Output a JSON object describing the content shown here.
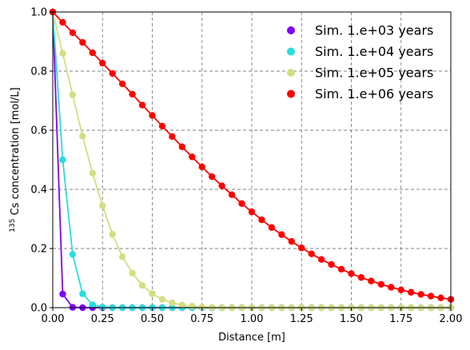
{
  "chart_data": {
    "type": "line",
    "xlabel": "Distance [m]",
    "ylabel_sup": "135",
    "ylabel_rest": " Cs concentration [mol/L]",
    "xlim": [
      0,
      2.0
    ],
    "ylim": [
      0,
      1.0
    ],
    "xticks": [
      "0.00",
      "0.25",
      "0.50",
      "0.75",
      "1.00",
      "1.25",
      "1.50",
      "1.75",
      "2.00"
    ],
    "yticks": [
      "0.0",
      "0.2",
      "0.4",
      "0.6",
      "0.8",
      "1.0"
    ],
    "grid": true,
    "legend_position": "top-right",
    "x": [
      0.0,
      0.05,
      0.1,
      0.15,
      0.2,
      0.25,
      0.3,
      0.35,
      0.4,
      0.45,
      0.5,
      0.55,
      0.6,
      0.65,
      0.7,
      0.75,
      0.8,
      0.85,
      0.9,
      0.95,
      1.0,
      1.05,
      1.1,
      1.15,
      1.2,
      1.25,
      1.3,
      1.35,
      1.4,
      1.45,
      1.5,
      1.55,
      1.6,
      1.65,
      1.7,
      1.75,
      1.8,
      1.85,
      1.9,
      1.95,
      2.0
    ],
    "series": [
      {
        "name": "Sim. 1.e+03 years",
        "color": "#8000ff",
        "values": [
          1.0,
          0.046,
          0.001,
          0,
          0,
          0,
          0,
          0,
          0,
          0,
          0,
          0,
          0,
          0,
          0,
          0,
          0,
          0,
          0,
          0,
          0,
          0,
          0,
          0,
          0,
          0,
          0,
          0,
          0,
          0,
          0,
          0,
          0,
          0,
          0,
          0,
          0,
          0,
          0,
          0,
          0
        ]
      },
      {
        "name": "Sim. 1.e+04 years",
        "color": "#2adddd",
        "values": [
          1.0,
          0.5,
          0.18,
          0.047,
          0.01,
          0.002,
          0,
          0,
          0,
          0,
          0,
          0,
          0,
          0,
          0,
          0,
          0,
          0,
          0,
          0,
          0,
          0,
          0,
          0,
          0,
          0,
          0,
          0,
          0,
          0,
          0,
          0,
          0,
          0,
          0,
          0,
          0,
          0,
          0,
          0,
          0
        ]
      },
      {
        "name": "Sim. 1.e+05 years",
        "color": "#d4dd80",
        "values": [
          1.0,
          0.86,
          0.72,
          0.58,
          0.455,
          0.345,
          0.248,
          0.172,
          0.117,
          0.075,
          0.047,
          0.028,
          0.016,
          0.009,
          0.005,
          0.002,
          0.001,
          0,
          0,
          0,
          0,
          0,
          0,
          0,
          0,
          0,
          0,
          0,
          0,
          0,
          0,
          0,
          0,
          0,
          0,
          0,
          0,
          0,
          0,
          0,
          0
        ]
      },
      {
        "name": "Sim. 1.e+06 years",
        "color": "#ff0000",
        "values": [
          1.0,
          0.965,
          0.93,
          0.897,
          0.862,
          0.827,
          0.792,
          0.757,
          0.722,
          0.685,
          0.65,
          0.614,
          0.579,
          0.544,
          0.51,
          0.476,
          0.443,
          0.412,
          0.382,
          0.352,
          0.324,
          0.297,
          0.271,
          0.247,
          0.224,
          0.202,
          0.182,
          0.163,
          0.146,
          0.13,
          0.115,
          0.102,
          0.09,
          0.079,
          0.069,
          0.06,
          0.052,
          0.045,
          0.039,
          0.033,
          0.028
        ]
      }
    ]
  }
}
